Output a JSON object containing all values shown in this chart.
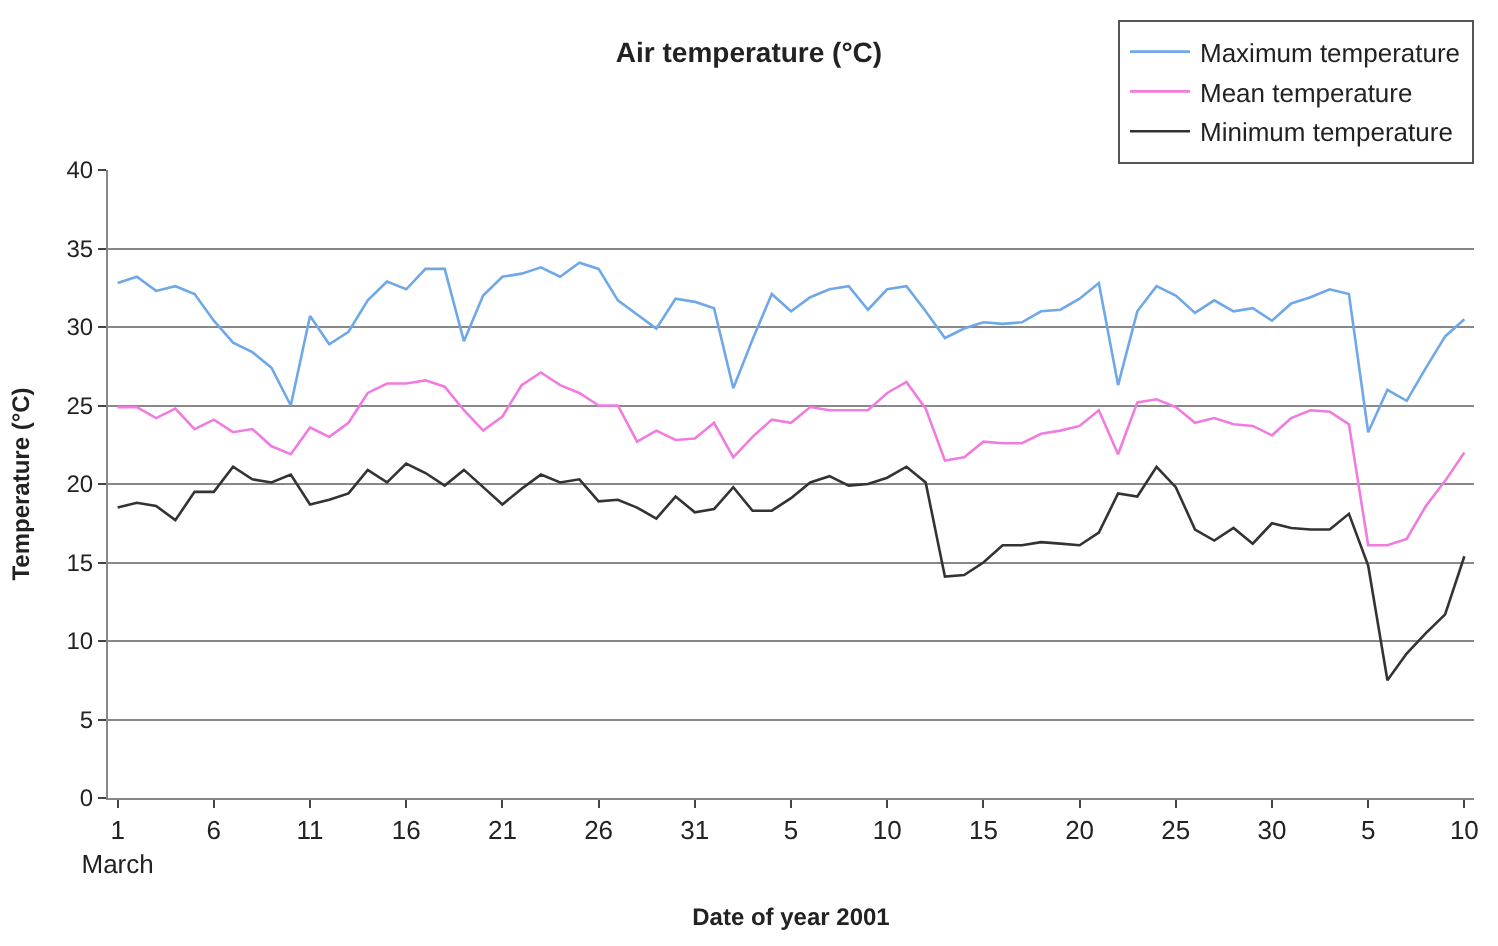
{
  "chart_data": {
    "type": "line",
    "title": "Air temperature (°C)",
    "xlabel": "Date of year 2001",
    "ylabel": "Temperature (°C)",
    "x": [
      "--03-01",
      "--03-02",
      "--03-03",
      "--03-04",
      "--03-05",
      "--03-06",
      "--03-07",
      "--03-08",
      "--03-09",
      "--03-10",
      "--03-11",
      "--03-12",
      "--03-13",
      "--03-14",
      "--03-15",
      "--03-16",
      "--03-17",
      "--03-18",
      "--03-19",
      "--03-20",
      "--03-21",
      "--03-22",
      "--03-23",
      "--03-24",
      "--03-25",
      "--03-26",
      "--03-27",
      "--03-28",
      "--03-29",
      "--03-30",
      "--03-31",
      "--04-01",
      "--04-02",
      "--04-03",
      "--04-04",
      "--04-05",
      "--04-06",
      "--04-07",
      "--04-08",
      "--04-09",
      "--04-10",
      "--04-11",
      "--04-12",
      "--04-13",
      "--04-14",
      "--04-15",
      "--04-16",
      "--04-17",
      "--04-18",
      "--04-19",
      "--04-20",
      "--04-21",
      "--04-22",
      "--04-23",
      "--04-24",
      "--04-25",
      "--04-26",
      "--04-27",
      "--04-28",
      "--04-29",
      "--04-30",
      "--05-01",
      "--05-02",
      "--05-03",
      "--05-04",
      "--05-05",
      "--05-06",
      "--05-07",
      "--05-08",
      "--05-09",
      "--05-10"
    ],
    "series": [
      {
        "name": "Maximum temperature",
        "color": "#6fa8e8",
        "values": [
          32.8,
          33.2,
          32.3,
          32.6,
          32.1,
          30.4,
          29.0,
          28.4,
          27.4,
          25.0,
          30.7,
          28.9,
          29.7,
          31.7,
          32.9,
          32.4,
          33.7,
          33.7,
          29.1,
          32.0,
          33.2,
          33.4,
          33.8,
          33.2,
          34.1,
          33.7,
          31.7,
          30.8,
          29.9,
          31.8,
          31.6,
          31.2,
          26.1,
          29.2,
          32.1,
          31.0,
          31.9,
          32.4,
          32.6,
          31.1,
          32.4,
          32.6,
          31.0,
          29.3,
          29.9,
          30.3,
          30.2,
          30.3,
          31.0,
          31.1,
          31.8,
          32.8,
          26.3,
          31.0,
          32.6,
          32.0,
          30.9,
          31.7,
          31.0,
          31.2,
          30.4,
          31.5,
          31.9,
          32.4,
          32.1,
          23.3,
          26.0,
          25.3,
          27.4,
          29.4,
          30.5
        ]
      },
      {
        "name": "Mean temperature",
        "color": "#f07ce0",
        "values": [
          24.9,
          24.9,
          24.2,
          24.8,
          23.5,
          24.1,
          23.3,
          23.5,
          22.4,
          21.9,
          23.6,
          23.0,
          23.9,
          25.8,
          26.4,
          26.4,
          26.6,
          26.2,
          24.7,
          23.4,
          24.3,
          26.3,
          27.1,
          26.3,
          25.8,
          25.0,
          25.0,
          22.7,
          23.4,
          22.8,
          22.9,
          23.9,
          21.7,
          23.0,
          24.1,
          23.9,
          24.9,
          24.7,
          24.7,
          24.7,
          25.8,
          26.5,
          24.8,
          21.5,
          21.7,
          22.7,
          22.6,
          22.6,
          23.2,
          23.4,
          23.7,
          24.7,
          21.9,
          25.2,
          25.4,
          24.9,
          23.9,
          24.2,
          23.8,
          23.7,
          23.1,
          24.2,
          24.7,
          24.6,
          23.8,
          16.1,
          16.1,
          16.5,
          18.6,
          20.2,
          22.0
        ]
      },
      {
        "name": "Minimum temperature",
        "color": "#333333",
        "values": [
          18.5,
          18.8,
          18.6,
          17.7,
          19.5,
          19.5,
          21.1,
          20.3,
          20.1,
          20.6,
          18.7,
          19.0,
          19.4,
          20.9,
          20.1,
          21.3,
          20.7,
          19.9,
          20.9,
          19.8,
          18.7,
          19.7,
          20.6,
          20.1,
          20.3,
          18.9,
          19.0,
          18.5,
          17.8,
          19.2,
          18.2,
          18.4,
          19.8,
          18.3,
          18.3,
          19.1,
          20.1,
          20.5,
          19.9,
          20.0,
          20.4,
          21.1,
          20.1,
          14.1,
          14.2,
          15.0,
          16.1,
          16.1,
          16.3,
          16.2,
          16.1,
          16.9,
          19.4,
          19.2,
          21.1,
          19.8,
          17.1,
          16.4,
          17.2,
          16.2,
          17.5,
          17.2,
          17.1,
          17.1,
          18.1,
          14.8,
          7.5,
          9.2,
          10.5,
          11.7,
          15.4
        ]
      }
    ],
    "xlim": [
      "--02-28T12:00",
      "--05-10T12:00"
    ],
    "xticks": [
      {
        "value": "--03-01",
        "label": "1\nMarch"
      },
      {
        "value": "--03-06",
        "label": "6"
      },
      {
        "value": "--03-11",
        "label": "11"
      },
      {
        "value": "--03-16",
        "label": "16"
      },
      {
        "value": "--03-21",
        "label": "21"
      },
      {
        "value": "--03-26",
        "label": "26"
      },
      {
        "value": "--03-31",
        "label": "31"
      },
      {
        "value": "--04-05",
        "label": "5"
      },
      {
        "value": "--04-10",
        "label": "10"
      },
      {
        "value": "--04-15",
        "label": "15"
      },
      {
        "value": "--04-20",
        "label": "20"
      },
      {
        "value": "--04-25",
        "label": "25"
      },
      {
        "value": "--04-30",
        "label": "30"
      },
      {
        "value": "--05-05",
        "label": "5"
      },
      {
        "value": "--05-10",
        "label": "10"
      }
    ],
    "ylim": [
      0,
      40
    ],
    "yticks": [
      0,
      5,
      10,
      15,
      20,
      25,
      30,
      35,
      40
    ],
    "grid": "y",
    "legend": "top right",
    "marker": "none",
    "line_style": "solid"
  }
}
